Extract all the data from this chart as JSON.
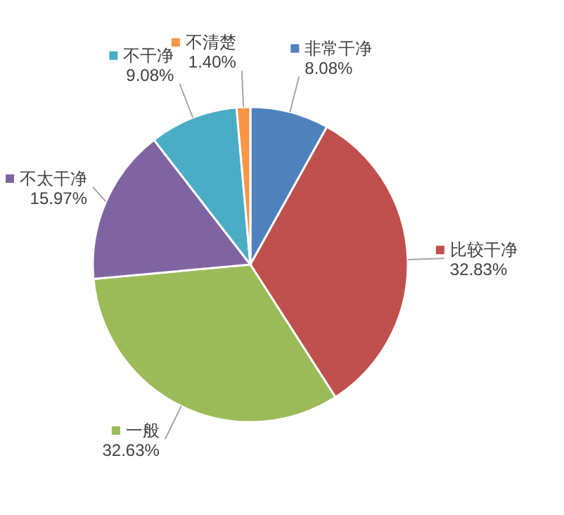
{
  "chart_data": {
    "type": "pie",
    "categories": [
      "非常干净",
      "比较干净",
      "一般",
      "不太干净",
      "不干净",
      "不清楚"
    ],
    "values": [
      8.08,
      32.83,
      32.63,
      15.97,
      9.08,
      1.4
    ],
    "colors": [
      "#4f81bd",
      "#c0504d",
      "#9bbb59",
      "#8064a2",
      "#4bacc6",
      "#f79646"
    ],
    "legend": true,
    "value_labels": [
      "8.08%",
      "32.83%",
      "32.63%",
      "15.97%",
      "9.08%",
      "1.40%"
    ]
  }
}
